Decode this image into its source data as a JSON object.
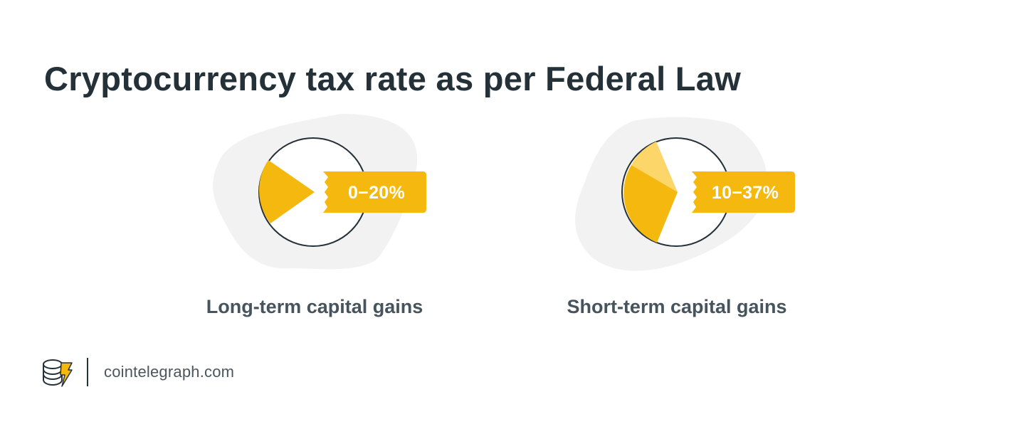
{
  "title": "Cryptocurrency tax rate as per Federal Law",
  "items": [
    {
      "label": "Long-term capital gains",
      "rate": "0−20%"
    },
    {
      "label": "Short-term capital gains",
      "rate": "10−37%"
    }
  ],
  "footer": {
    "site": "cointelegraph.com",
    "logo_icon": "cointelegraph-logo-icon"
  },
  "colors": {
    "text_dark": "#243138",
    "caption": "#46545d",
    "accent_yellow": "#f4b80f",
    "light_yellow": "#fdd66a",
    "blob_gray": "#f1f2f1"
  }
}
